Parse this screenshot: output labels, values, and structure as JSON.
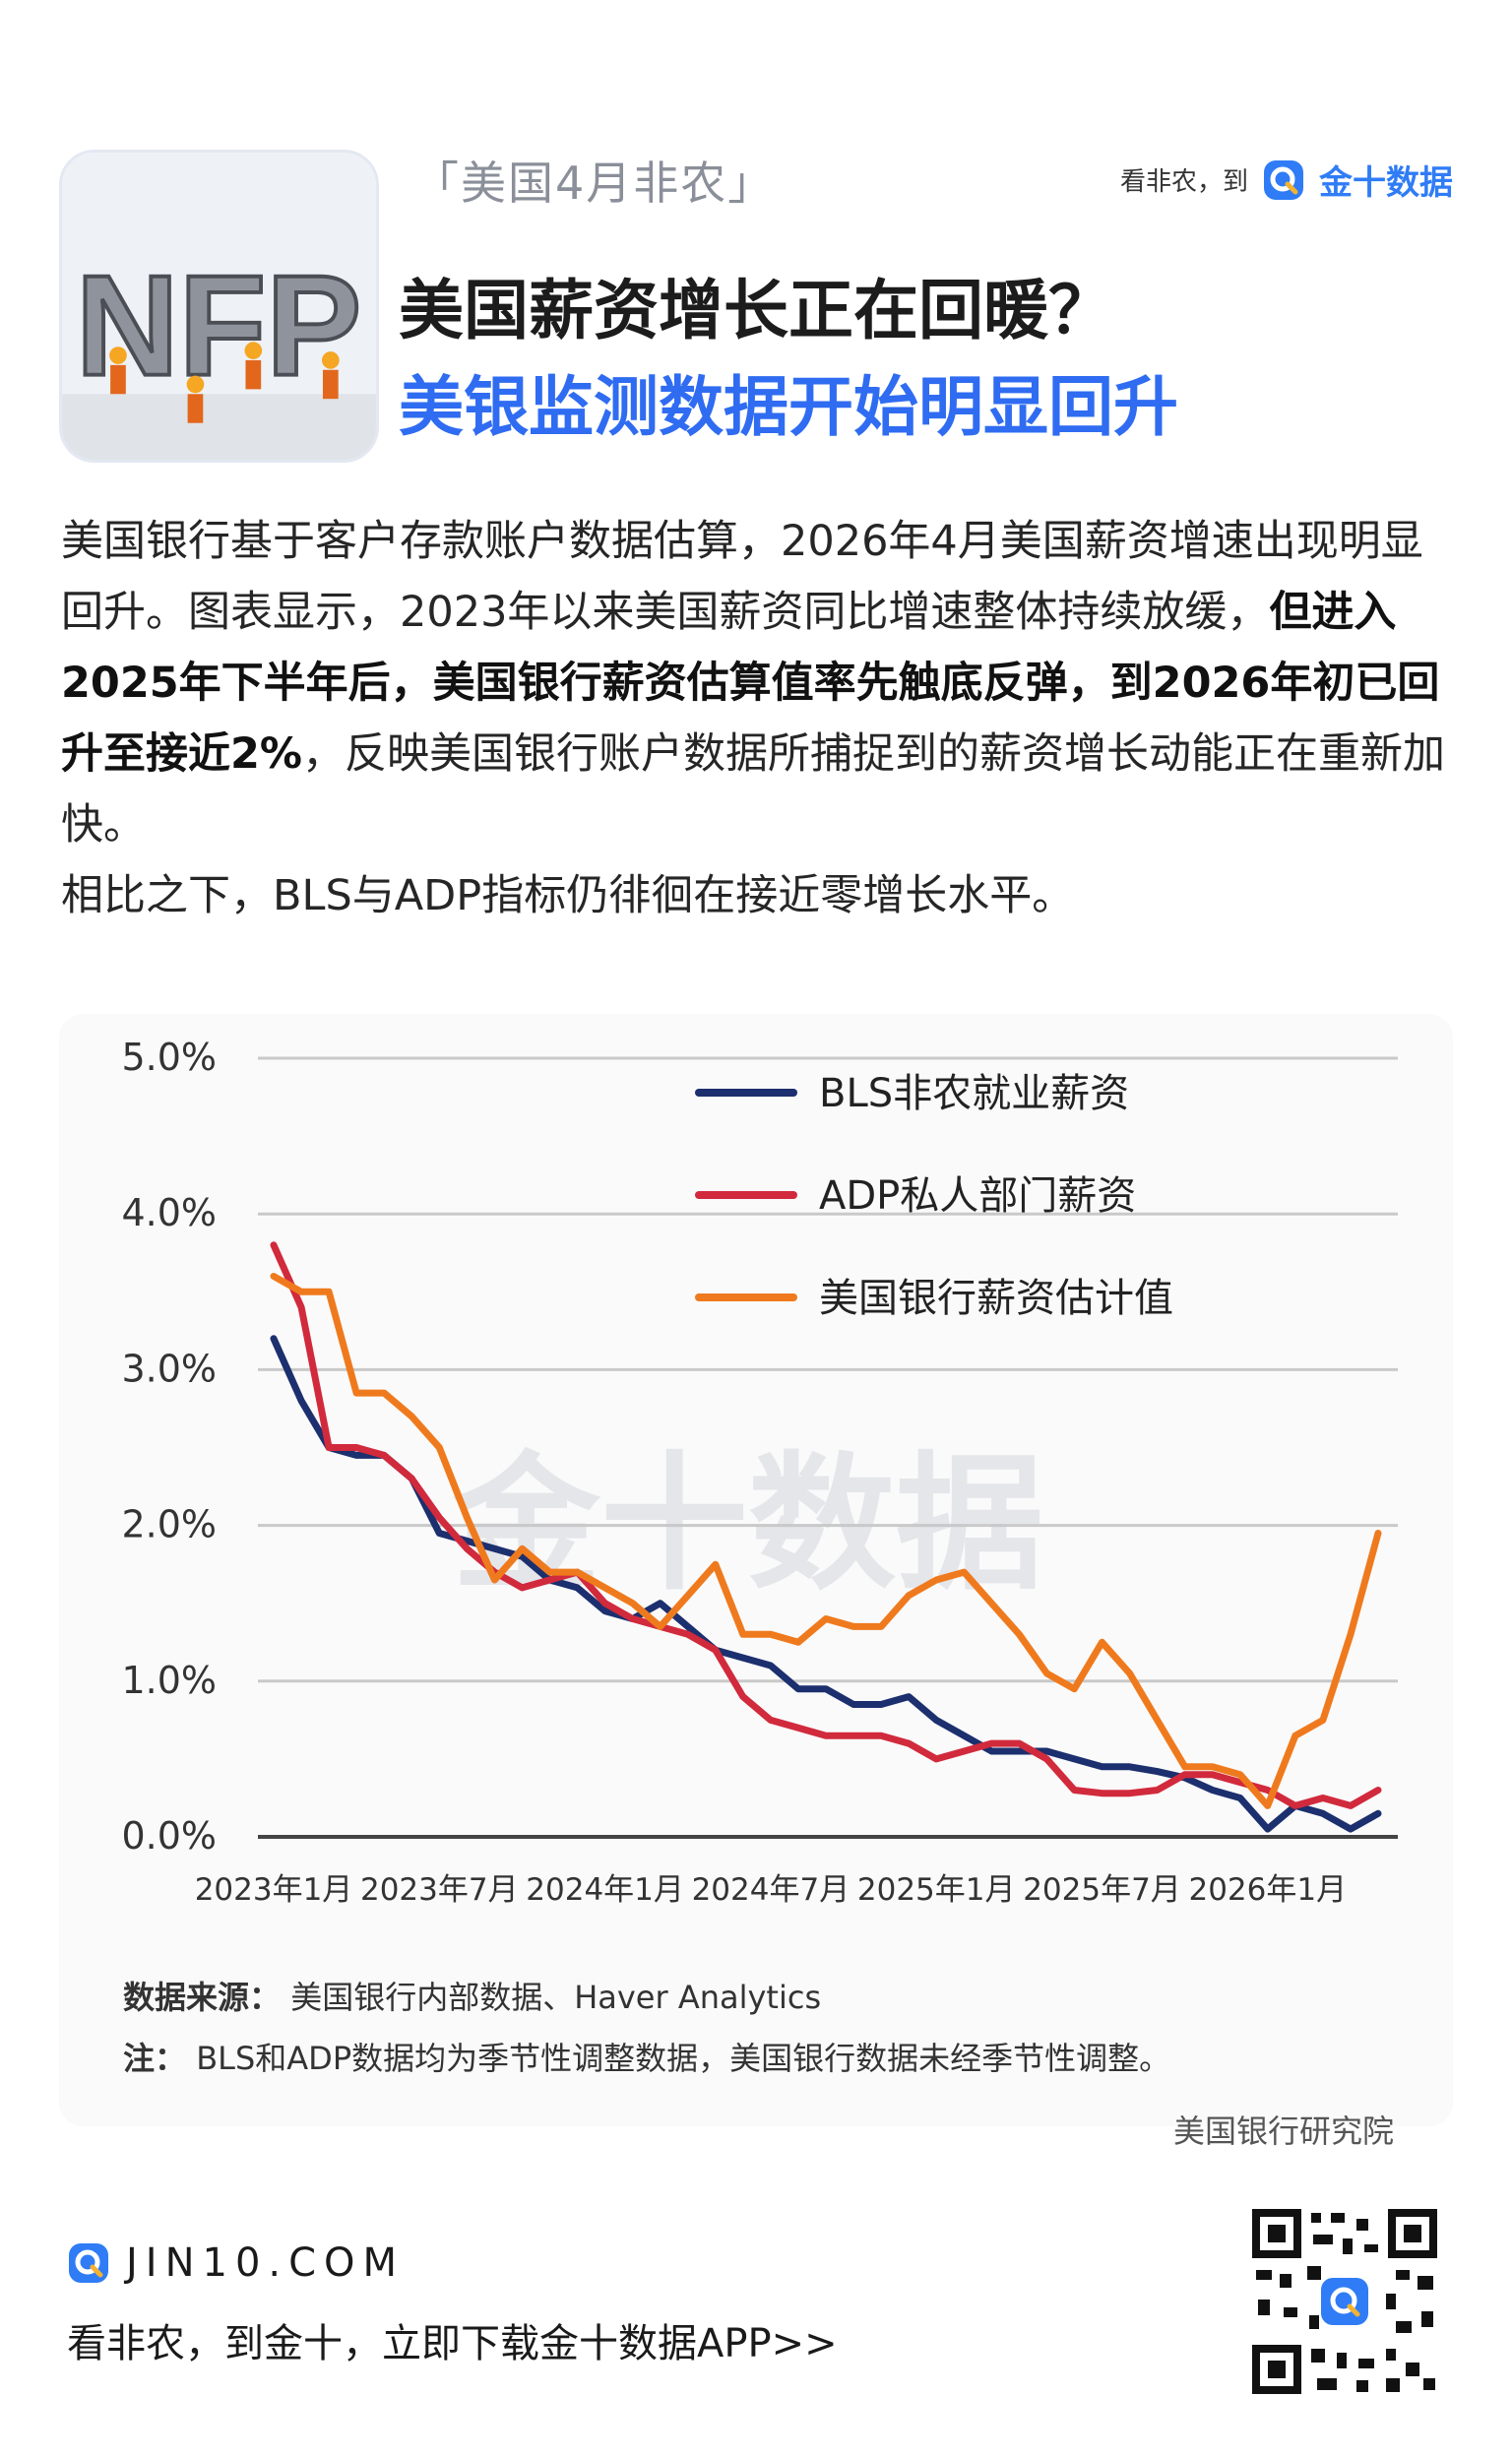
{
  "header": {
    "tagline": "「美国4月非农」",
    "brand_slogan": "看非农，到",
    "brand_name": "金十数据",
    "hero_text": "NFP",
    "headline_line1": "美国薪资增长正在回暖？",
    "headline_line2": "美银监测数据开始明显回升"
  },
  "intro": {
    "p1_a": "美国银行基于客户存款账户数据估算，2026年4月美国薪资增速出现明显回升。图表显示，2023年以来美国薪资同比增速整体持续放缓，",
    "p1_bold": "但进入2025年下半年后，美国银行薪资估算值率先触底反弹，到2026年初已回升至接近2%",
    "p1_b": "，反映美国银行账户数据所捕捉到的薪资增长动能正在重新加快。",
    "p2": "相比之下，BLS与ADP指标仍徘徊在接近零增长水平。"
  },
  "chart_data": {
    "type": "line",
    "title": "",
    "xlabel": "",
    "ylabel": "",
    "ylim": [
      0,
      5
    ],
    "yticks": [
      "0.0%",
      "1.0%",
      "2.0%",
      "3.0%",
      "4.0%",
      "5.0%"
    ],
    "x_ticks": [
      "2023年1月",
      "2023年7月",
      "2024年1月",
      "2024年7月",
      "2025年1月",
      "2025年7月",
      "2026年1月"
    ],
    "x_start": "2023-01",
    "grid": true,
    "legend_position": "top-center",
    "watermark": "金十数据",
    "series": [
      {
        "name": "BLS非农就业薪资",
        "color": "#1c2f6e",
        "values": [
          3.2,
          2.8,
          2.5,
          2.45,
          2.45,
          2.3,
          1.95,
          1.9,
          1.85,
          1.8,
          1.65,
          1.6,
          1.45,
          1.4,
          1.5,
          1.35,
          1.2,
          1.15,
          1.1,
          0.95,
          0.95,
          0.85,
          0.85,
          0.9,
          0.75,
          0.65,
          0.55,
          0.55,
          0.55,
          0.5,
          0.45,
          0.45,
          0.42,
          0.38,
          0.3,
          0.25,
          0.05,
          0.2,
          0.15,
          0.05,
          0.15
        ]
      },
      {
        "name": "ADP私人部门薪资",
        "color": "#d12a3c",
        "values": [
          3.8,
          3.4,
          2.5,
          2.5,
          2.45,
          2.3,
          2.05,
          1.85,
          1.7,
          1.6,
          1.65,
          1.7,
          1.5,
          1.4,
          1.35,
          1.3,
          1.2,
          0.9,
          0.75,
          0.7,
          0.65,
          0.65,
          0.65,
          0.6,
          0.5,
          0.55,
          0.6,
          0.6,
          0.5,
          0.3,
          0.28,
          0.28,
          0.3,
          0.4,
          0.4,
          0.35,
          0.3,
          0.2,
          0.25,
          0.2,
          0.3
        ]
      },
      {
        "name": "美国银行薪资估计值",
        "color": "#ef7a1e",
        "values": [
          3.6,
          3.5,
          3.5,
          2.85,
          2.85,
          2.7,
          2.5,
          2.05,
          1.65,
          1.85,
          1.7,
          1.7,
          1.6,
          1.5,
          1.35,
          1.55,
          1.75,
          1.3,
          1.3,
          1.25,
          1.4,
          1.35,
          1.35,
          1.55,
          1.65,
          1.7,
          1.5,
          1.3,
          1.05,
          0.95,
          1.25,
          1.05,
          0.75,
          0.45,
          0.45,
          0.4,
          0.2,
          0.65,
          0.75,
          1.3,
          1.95
        ]
      }
    ]
  },
  "notes": {
    "source_label": "数据来源：",
    "source_text": "美国银行内部数据、Haver Analytics",
    "note_label": "注：",
    "note_text": "BLS和ADP数据均为季节性调整数据，美国银行数据未经季节性调整。",
    "credit": "美国银行研究院"
  },
  "footer": {
    "site": "JIN10.COM",
    "cta": "看非农，到金十，立即下载金十数据APP>>"
  },
  "colors": {
    "accent_blue": "#2f6cf1",
    "brand_blue": "#2f7cf6"
  }
}
